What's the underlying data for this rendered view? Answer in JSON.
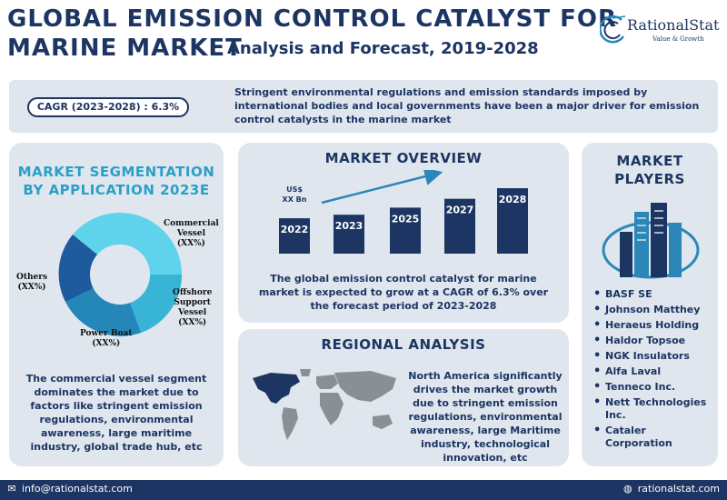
{
  "header": {
    "title_line1": "GLOBAL EMISSION CONTROL CATALYST FOR",
    "title_line2": "MARINE MARKET",
    "subtitle": "Analysis and Forecast, 2019-2028"
  },
  "logo": {
    "name": "RationalStat",
    "tagline": "Value & Growth"
  },
  "cagr": {
    "label": "CAGR (2023-2028) : 6.3%",
    "description": "Stringent environmental regulations and emission standards imposed by international bodies and local governments have been a major driver for emission control catalysts in the marine market"
  },
  "segmentation": {
    "title_line1": "MARKET SEGMENTATION",
    "title_line2": "BY APPLICATION 2023E",
    "labels": {
      "commercial_l1": "Commercial",
      "commercial_l2": "Vessel",
      "commercial_l3": "(XX%)",
      "offshore_l1": "Offshore",
      "offshore_l2": "Support",
      "offshore_l3": "Vessel",
      "offshore_l4": "(XX%)",
      "power_l1": "Power Boat",
      "power_l2": "(XX%)",
      "others_l1": "Others",
      "others_l2": "(XX%)"
    },
    "description": "The commercial vessel segment dominates the market due to factors like stringent emission regulations, environmental awareness, large maritime industry, global trade hub, etc",
    "colors": {
      "commercial": "#5fd3eb",
      "offshore": "#37b4d6",
      "power": "#2587b8",
      "others": "#1d5a9e"
    }
  },
  "overview": {
    "title": "MARKET OVERVIEW",
    "value_label_line1": "US$",
    "value_label_line2": "XX Bn",
    "description": "The global emission control catalyst for marine market is expected to grow at a CAGR of 6.3% over the forecast period of 2023-2028",
    "bar_color": "#1c3562",
    "arrow_color": "#2a87b8"
  },
  "chart_data": {
    "type": "bar",
    "categories": [
      "2022",
      "2023",
      "2025",
      "2027",
      "2028"
    ],
    "values": [
      1,
      1.1,
      1.3,
      1.55,
      1.85
    ],
    "title": "",
    "xlabel": "",
    "ylabel": "",
    "grid": false
  },
  "regional": {
    "title": "REGIONAL ANALYSIS",
    "description": "North America significantly drives the market growth due to stringent emission regulations, environmental awareness, large Maritime industry, technological innovation, etc"
  },
  "players": {
    "title_line1": "MARKET",
    "title_line2": "PLAYERS",
    "items": [
      "BASF SE",
      "Johnson Matthey",
      "Heraeus Holding",
      "Haldor Topsoe",
      "NGK Insulators",
      "Alfa Laval",
      "Tenneco Inc.",
      "Nett Technologies Inc.",
      "Cataler Corporation"
    ]
  },
  "footer": {
    "email": "info@rationalstat.com",
    "website": "rationalstat.com"
  }
}
